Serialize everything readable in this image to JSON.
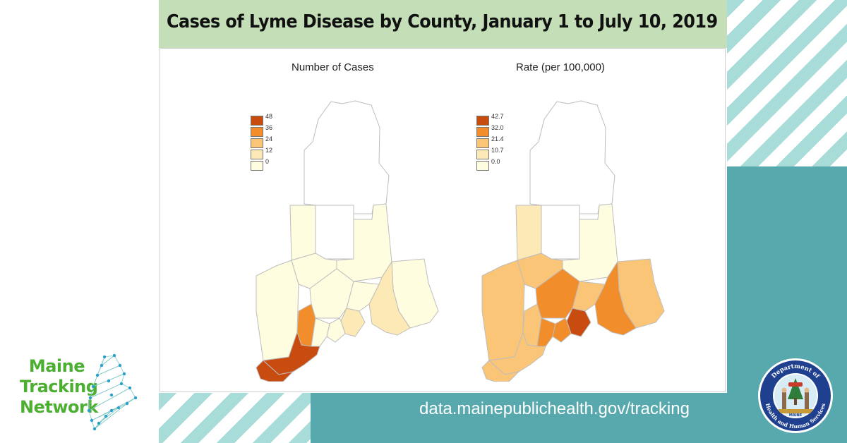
{
  "header": {
    "title": "Cases of Lyme Disease by County, January 1 to July 10, 2019"
  },
  "maps": [
    {
      "title": "Number of Cases",
      "legend": {
        "labels": [
          "48",
          "36",
          "24",
          "12",
          "0"
        ],
        "colors": [
          "#c84b10",
          "#f28d2b",
          "#fbc577",
          "#fde9b5",
          "#fefde0"
        ]
      }
    },
    {
      "title": "Rate (per 100,000)",
      "legend": {
        "labels": [
          "42.7",
          "32.0",
          "21.4",
          "10.7",
          "0.0"
        ],
        "colors": [
          "#c84b10",
          "#f28d2b",
          "#fbc577",
          "#fde9b5",
          "#fefde0"
        ]
      }
    }
  ],
  "footer": {
    "url": "data.mainepublichealth.gov/tracking"
  },
  "logo": {
    "line1": "Maine",
    "line2": "Tracking",
    "line3": "Network",
    "color": "#4caf32"
  },
  "seal": {
    "text_top": "Department of",
    "text_bottom": "Health and Human Services",
    "center_text": "MAINE"
  },
  "colors": {
    "teal": "#58a9ad",
    "stripe": "#a8dcd9",
    "title_band": "#c4dfb7"
  }
}
